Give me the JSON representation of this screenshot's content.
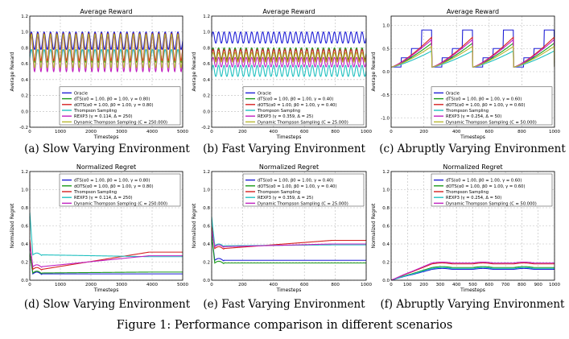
{
  "figure_caption": "Figure 1: Performance comparison in different scenarios",
  "series_colors": {
    "oracle": "#1f1fd6",
    "dts": "#1a9a1a",
    "ddts": "#d62020",
    "ts": "#20c0c0",
    "rexp3": "#c020c0",
    "dyn": "#b8b830"
  },
  "chart_data": [
    {
      "id": "a",
      "type": "line",
      "caption": "(a) Slow Varying Environment",
      "title": "Average Reward",
      "xlabel": "Timesteps",
      "ylabel": "Average Reward",
      "xlim": [
        0,
        5000
      ],
      "ylim": [
        -0.2,
        1.2
      ],
      "xticks": [
        0,
        1000,
        2000,
        3000,
        4000,
        5000
      ],
      "yticks": [
        -0.2,
        0.0,
        0.2,
        0.4,
        0.6,
        0.8,
        1.0,
        1.2
      ],
      "legend": "lower-right",
      "series": [
        {
          "key": "oracle",
          "name": "Oracle",
          "shape": "periodic",
          "min": 0.78,
          "max": 1.0,
          "cycles": 24
        },
        {
          "key": "dts",
          "name": "dTS(α0 = 1.00, β0 = 1.00, γ = 0.80)",
          "shape": "periodic",
          "min": 0.62,
          "max": 0.98,
          "cycles": 24
        },
        {
          "key": "ddts",
          "name": "dOTS(α0 = 1.00, β0 = 1.00, γ = 0.80)",
          "shape": "periodic",
          "min": 0.64,
          "max": 0.98,
          "cycles": 24
        },
        {
          "key": "ts",
          "name": "Thompson Sampling",
          "shape": "periodic",
          "min": 0.56,
          "max": 0.78,
          "cycles": 24
        },
        {
          "key": "rexp3",
          "name": "REXP3 (γ = 0.114, Δ = 250)",
          "shape": "periodic",
          "min": 0.5,
          "max": 0.95,
          "cycles": 24
        },
        {
          "key": "dyn",
          "name": "Dynamic Thompson Sampling (C = 250.000)",
          "shape": "periodic",
          "min": 0.55,
          "max": 0.97,
          "cycles": 24
        }
      ]
    },
    {
      "id": "b",
      "type": "line",
      "caption": "(b) Fast Varying Environment",
      "title": "Average Reward",
      "xlabel": "Timesteps",
      "ylabel": "Average Reward",
      "xlim": [
        0,
        1000
      ],
      "ylim": [
        -0.2,
        1.2
      ],
      "xticks": [
        0,
        200,
        400,
        600,
        800,
        1000
      ],
      "yticks": [
        -0.2,
        0.0,
        0.2,
        0.4,
        0.6,
        0.8,
        1.0,
        1.2
      ],
      "legend": "lower-right",
      "series": [
        {
          "key": "oracle",
          "name": "Oracle",
          "shape": "periodic",
          "min": 0.86,
          "max": 1.0,
          "cycles": 28
        },
        {
          "key": "dts",
          "name": "dTS(α0 = 1.00, β0 = 1.00, γ = 0.40)",
          "shape": "periodic",
          "min": 0.66,
          "max": 0.8,
          "cycles": 28
        },
        {
          "key": "ddts",
          "name": "dOTS(α0 = 1.00, β0 = 1.00, γ = 0.40)",
          "shape": "periodic",
          "min": 0.64,
          "max": 0.78,
          "cycles": 28
        },
        {
          "key": "ts",
          "name": "Thompson Sampling",
          "shape": "periodic",
          "min": 0.44,
          "max": 0.58,
          "cycles": 28
        },
        {
          "key": "rexp3",
          "name": "REXP3 (γ = 0.359, Δ = 25)",
          "shape": "periodic",
          "min": 0.56,
          "max": 0.68,
          "cycles": 28
        },
        {
          "key": "dyn",
          "name": "Dynamic Thompson Sampling (C = 25.000)",
          "shape": "periodic",
          "min": 0.62,
          "max": 0.74,
          "cycles": 28
        }
      ]
    },
    {
      "id": "c",
      "type": "line",
      "caption": "(c) Abruptly Varying Environment",
      "title": "Average Reward",
      "xlabel": "Timesteps",
      "ylabel": "Average Reward",
      "xlim": [
        0,
        1000
      ],
      "ylim": [
        -1.2,
        1.2
      ],
      "xticks": [
        0,
        200,
        400,
        600,
        800,
        1000
      ],
      "yticks": [
        -1.0,
        -0.5,
        0.0,
        0.5,
        1.0
      ],
      "legend": "bottom-right",
      "series": [
        {
          "key": "oracle",
          "name": "Oracle",
          "shape": "staircase",
          "levels": [
            0.1,
            0.3,
            0.5,
            0.9
          ],
          "period": 250
        },
        {
          "key": "dts",
          "name": "dTS(α0 = 1.00, β0 = 1.00, γ = 0.60)",
          "shape": "ramp",
          "start": 0.1,
          "end": 0.62,
          "period": 250
        },
        {
          "key": "ddts",
          "name": "dOTS(α0 = 1.00, β0 = 1.00, γ = 0.60)",
          "shape": "ramp",
          "start": 0.1,
          "end": 0.75,
          "period": 250
        },
        {
          "key": "ts",
          "name": "Thompson Sampling",
          "shape": "ramp",
          "start": 0.1,
          "end": 0.45,
          "period": 250
        },
        {
          "key": "rexp3",
          "name": "REXP3 (γ = 0.254, Δ = 50)",
          "shape": "ramp",
          "start": 0.1,
          "end": 0.7,
          "period": 250
        },
        {
          "key": "dyn",
          "name": "Dynamic Thompson Sampling (C = 50.000)",
          "shape": "ramp",
          "start": 0.1,
          "end": 0.55,
          "period": 250
        }
      ]
    },
    {
      "id": "d",
      "type": "line",
      "caption": "(d) Slow Varying Environment",
      "title": "Normalized Regret",
      "xlabel": "Timesteps",
      "ylabel": "Normalized Regret",
      "xlim": [
        0,
        5000
      ],
      "ylim": [
        0,
        1.2
      ],
      "xticks": [
        0,
        1000,
        2000,
        3000,
        4000,
        5000
      ],
      "yticks": [
        0.0,
        0.2,
        0.4,
        0.6,
        0.8,
        1.0,
        1.2
      ],
      "legend": "top-right",
      "series": [
        {
          "key": "oracle",
          "name": "dTS(α0 = 1.00, β0 = 1.00, γ = 0.80)",
          "shape": "regret",
          "first": 0.3,
          "dip": 0.07,
          "final": 0.07
        },
        {
          "key": "dts",
          "name": "dOTS(α0 = 1.00, β0 = 1.00, γ = 0.80)",
          "shape": "regret",
          "first": 0.3,
          "dip": 0.08,
          "final": 0.09
        },
        {
          "key": "ddts",
          "name": "Thompson Sampling",
          "shape": "regret",
          "first": 0.45,
          "dip": 0.12,
          "final": 0.31
        },
        {
          "key": "ts",
          "name": "REXP3 (γ = 0.114, Δ = 250)",
          "shape": "regret",
          "first": 0.75,
          "dip": 0.28,
          "final": 0.26
        },
        {
          "key": "rexp3",
          "name": "Dynamic Thompson Sampling (C = 250.000)",
          "shape": "regret",
          "first": 0.4,
          "dip": 0.15,
          "final": 0.27
        }
      ]
    },
    {
      "id": "e",
      "type": "line",
      "caption": "(e) Fast Varying Environment",
      "title": "Normalized Regret",
      "xlabel": "Timesteps",
      "ylabel": "Normalized Regret",
      "xlim": [
        0,
        1000
      ],
      "ylim": [
        0,
        1.2
      ],
      "xticks": [
        0,
        200,
        400,
        600,
        800,
        1000
      ],
      "yticks": [
        0.0,
        0.2,
        0.4,
        0.6,
        0.8,
        1.0,
        1.2
      ],
      "legend": "top-right",
      "series": [
        {
          "key": "oracle",
          "name": "dTS(α0 = 1.00, β0 = 1.00, γ = 0.40)",
          "shape": "regret",
          "first": 0.5,
          "dip": 0.22,
          "final": 0.22
        },
        {
          "key": "dts",
          "name": "dOTS(α0 = 1.00, β0 = 1.00, γ = 0.40)",
          "shape": "regret",
          "first": 0.5,
          "dip": 0.19,
          "final": 0.19
        },
        {
          "key": "ddts",
          "name": "Thompson Sampling",
          "shape": "regret",
          "first": 0.6,
          "dip": 0.35,
          "final": 0.44
        },
        {
          "key": "ts",
          "name": "REXP3 (γ = 0.359, Δ = 25)",
          "shape": "regret",
          "first": 0.7,
          "dip": 0.38,
          "final": 0.39
        },
        {
          "key": "rexp3",
          "name": "Dynamic Thompson Sampling (C = 25.000)",
          "shape": "regret",
          "first": 0.55,
          "dip": 0.37,
          "final": 0.4
        }
      ]
    },
    {
      "id": "f",
      "type": "line",
      "caption": "(f) Abruptly Varying Environment",
      "title": "Normalized Regret",
      "xlabel": "Timesteps",
      "ylabel": "Normalized Regret",
      "xlim": [
        0,
        1000
      ],
      "ylim": [
        0,
        1.2
      ],
      "xticks": [
        0,
        100,
        200,
        300,
        400,
        500,
        600,
        700,
        800,
        900,
        1000
      ],
      "yticks": [
        0.0,
        0.2,
        0.4,
        0.6,
        0.8,
        1.0,
        1.2
      ],
      "legend": "top-right",
      "series": [
        {
          "key": "oracle",
          "name": "dTS(α0 = 1.00, β0 = 1.00, γ = 0.60)",
          "shape": "wavy",
          "final": 0.12,
          "peak": 0.13
        },
        {
          "key": "dts",
          "name": "dOTS(α0 = 1.00, β0 = 1.00, γ = 0.60)",
          "shape": "wavy",
          "final": 0.14,
          "peak": 0.15
        },
        {
          "key": "ddts",
          "name": "Thompson Sampling",
          "shape": "wavy",
          "final": 0.18,
          "peak": 0.19
        },
        {
          "key": "ts",
          "name": "REXP3 (γ = 0.254, Δ = 50)",
          "shape": "wavy",
          "final": 0.13,
          "peak": 0.14
        },
        {
          "key": "rexp3",
          "name": "Dynamic Thompson Sampling (C = 50.000)",
          "shape": "wavy",
          "final": 0.19,
          "peak": 0.2
        }
      ]
    }
  ]
}
